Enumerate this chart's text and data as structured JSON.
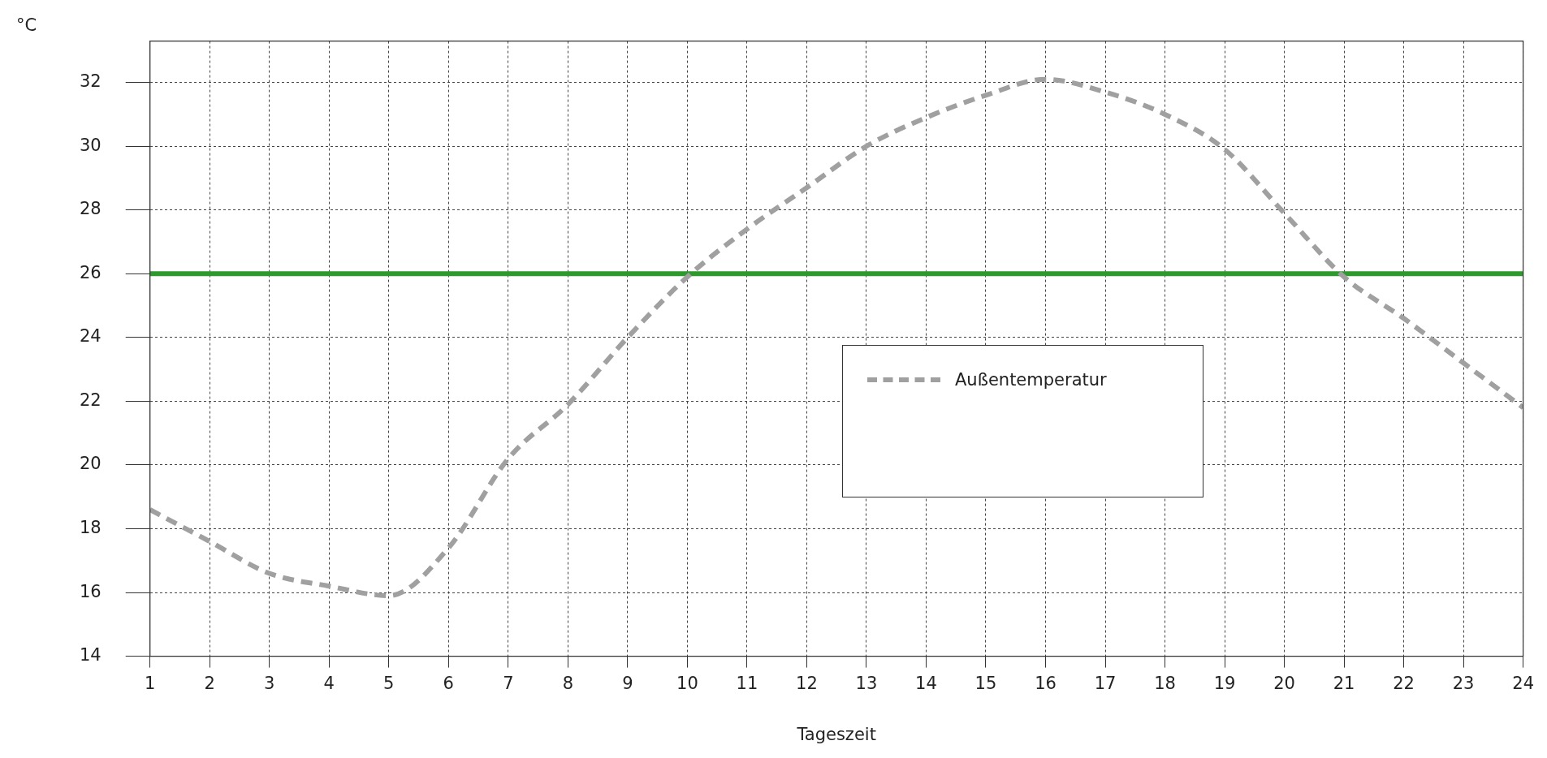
{
  "chart_data": {
    "type": "line",
    "xlabel": "Tageszeit",
    "ylabel": "°C",
    "x": [
      1,
      2,
      3,
      4,
      5,
      6,
      7,
      8,
      9,
      10,
      11,
      12,
      13,
      14,
      15,
      16,
      17,
      18,
      19,
      20,
      21,
      22,
      23,
      24
    ],
    "series": [
      {
        "name": "Außentemperatur",
        "color": "#a0a0a0",
        "line_style": "dashed",
        "marker": "none",
        "values": [
          18.6,
          17.6,
          16.6,
          16.2,
          15.9,
          17.4,
          20.2,
          21.9,
          24.0,
          25.9,
          27.4,
          28.7,
          30.0,
          30.9,
          31.6,
          32.1,
          31.7,
          31.0,
          29.9,
          27.9,
          25.9,
          24.6,
          23.2,
          21.8
        ]
      }
    ],
    "ref_lines": [
      {
        "axis": "y",
        "value": 26,
        "color": "#2e9a2e"
      }
    ],
    "xlim": [
      1,
      24
    ],
    "xticks": [
      1,
      2,
      3,
      4,
      5,
      6,
      7,
      8,
      9,
      10,
      11,
      12,
      13,
      14,
      15,
      16,
      17,
      18,
      19,
      20,
      21,
      22,
      23,
      24
    ],
    "ylim": [
      14,
      33.3
    ],
    "yticks": [
      14,
      16,
      18,
      20,
      22,
      24,
      26,
      28,
      30,
      32
    ],
    "grid": true,
    "legend": "center right"
  }
}
